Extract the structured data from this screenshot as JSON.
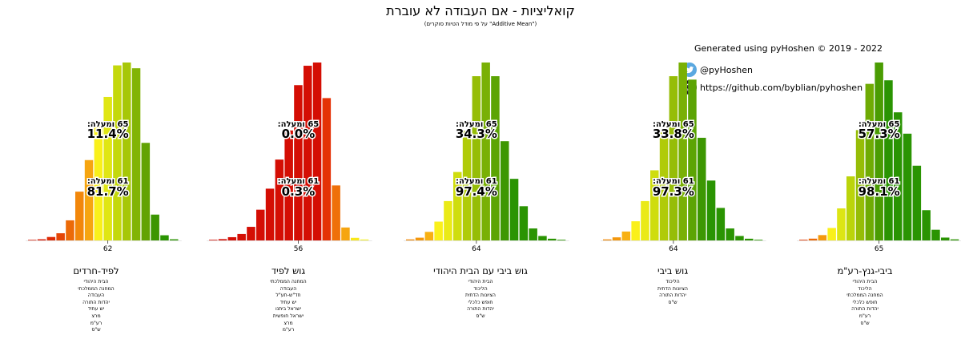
{
  "title": "קואליציות - אם העבודה לא עוברת",
  "subtitle": "(על פי מודל הטיות סוקרים \"Additive Mean\")",
  "credits": {
    "generated": "Generated using pyHoshen © 2019 - 2022",
    "twitter": "@pyHoshen",
    "github": "https://github.com/byblian/pyhoshen",
    "twitter_icon": "twitter-bird-icon",
    "github_icon": "github-octocat-icon"
  },
  "label_65": "65 ומעלה:",
  "label_61": "61 ומעלה:",
  "chart_data": [
    {
      "type": "bar",
      "name": "לפיד-חרדים",
      "tick_label": "62",
      "tick_value": 62,
      "pct_65": "11.4%",
      "pct_61": "81.7%",
      "parties": [
        "הבית היהודי",
        "המחנה הממלכתי",
        "העבודה",
        "יהדות התורה",
        "יש עתיד",
        "מרצ",
        "רע\"מ",
        "ש\"ס"
      ],
      "x": [
        54,
        55,
        56,
        57,
        58,
        59,
        60,
        61,
        62,
        63,
        64,
        65,
        66,
        67,
        68,
        69
      ],
      "values": [
        0.2,
        0.4,
        1.2,
        2.5,
        7,
        17,
        28,
        40,
        50,
        61,
        62,
        60,
        34,
        9,
        1.8,
        0.4
      ],
      "colors": [
        "#d81a05",
        "#d81a05",
        "#dd2a05",
        "#e54606",
        "#ec6a08",
        "#f2870b",
        "#f6a510",
        "#f9f01b",
        "#e0e614",
        "#c4d80c",
        "#a7c708",
        "#82b405",
        "#62a303",
        "#3c9602",
        "#2a9402",
        "#2a9402"
      ]
    },
    {
      "type": "bar",
      "name": "גוש לפיד",
      "tick_label": "56",
      "tick_value": 56,
      "pct_65": "0.0%",
      "pct_61": "0.3%",
      "parties": [
        "המחנה הממלכתי",
        "העבודה",
        "חד\"ש-תע\"ל",
        "יש עתיד",
        "ישראל ביתנו",
        "ישראל חופשית",
        "מרצ",
        "רע\"מ"
      ],
      "x": [
        47,
        48,
        49,
        50,
        51,
        52,
        53,
        54,
        55,
        56,
        57,
        58,
        59,
        60,
        61,
        62,
        63
      ],
      "values": [
        0.2,
        0.4,
        1,
        2,
        4.2,
        9.5,
        16,
        25,
        34,
        48,
        54,
        55,
        44,
        17,
        4,
        0.8,
        0.3
      ],
      "colors": [
        "#d40e04",
        "#d40e04",
        "#d40e04",
        "#d40e04",
        "#d40e04",
        "#d40e04",
        "#d40e04",
        "#d40e04",
        "#d40e04",
        "#d40e04",
        "#d40e04",
        "#d40e04",
        "#e43206",
        "#ef700a",
        "#f6a510",
        "#f9e81a",
        "#f3f13a"
      ]
    },
    {
      "type": "bar",
      "name": "גוש ביבי עם הבית היהודי",
      "tick_label": "64",
      "tick_value": 64,
      "pct_65": "34.3%",
      "pct_61": "97.4%",
      "parties": [
        "הבית היהודי",
        "הליכוד",
        "הציונות הדתית",
        "חופש כלכלי",
        "יהדות התורה",
        "ש\"ס"
      ],
      "x": [
        57,
        58,
        59,
        60,
        61,
        62,
        63,
        64,
        65,
        66,
        67,
        68,
        69,
        70,
        71,
        72,
        73
      ],
      "values": [
        0.3,
        0.8,
        2.5,
        5.5,
        11.5,
        20,
        32,
        48,
        52,
        48,
        29,
        18,
        10,
        3.5,
        1.3,
        0.5,
        0.2
      ],
      "colors": [
        "#f08a0b",
        "#f3970c",
        "#f8b011",
        "#faf01b",
        "#eaea17",
        "#cfdd0e",
        "#b0cb09",
        "#96bd07",
        "#79b005",
        "#5ca404",
        "#3d9702",
        "#2a9402",
        "#2a9402",
        "#2a9402",
        "#2a9402",
        "#2a9402",
        "#2a9402"
      ]
    },
    {
      "type": "bar",
      "name": "גוש ביבי",
      "tick_label": "64",
      "tick_value": 64,
      "pct_65": "33.8%",
      "pct_61": "97.3%",
      "parties": [
        "הליכוד",
        "הציונות הדתית",
        "יהדות התורה",
        "ש\"ס"
      ],
      "x": [
        57,
        58,
        59,
        60,
        61,
        62,
        63,
        64,
        65,
        66,
        67,
        68,
        69,
        70,
        71,
        72,
        73
      ],
      "values": [
        0.3,
        0.9,
        2.6,
        5.6,
        11.5,
        20.5,
        32,
        48,
        52,
        47,
        30,
        17.5,
        9.5,
        3.5,
        1.3,
        0.5,
        0.2
      ],
      "colors": [
        "#f08a0b",
        "#f3970c",
        "#f8b011",
        "#faf01b",
        "#eaea17",
        "#cfdd0e",
        "#b0cb09",
        "#96bd07",
        "#79b005",
        "#5ca404",
        "#3d9702",
        "#2a9402",
        "#2a9402",
        "#2a9402",
        "#2a9402",
        "#2a9402",
        "#2a9402"
      ]
    },
    {
      "type": "bar",
      "name": "ביבי-גנץ-רע\"מ",
      "tick_label": "65",
      "tick_value": 65,
      "pct_65": "57.3%",
      "pct_61": "98.1%",
      "parties": [
        "הבית היהודי",
        "הליכוד",
        "המחנה הממלכתי",
        "חופש כלכלי",
        "יהדות התורה",
        "רע\"מ",
        "ש\"ס"
      ],
      "x": [
        57,
        58,
        59,
        60,
        61,
        62,
        63,
        64,
        65,
        66,
        67,
        68,
        69,
        70,
        71,
        72,
        73
      ],
      "values": [
        0.2,
        0.5,
        1.5,
        3.5,
        9,
        18,
        31,
        44,
        50,
        45,
        36,
        30,
        21,
        8.5,
        3,
        0.8,
        0.3
      ],
      "colors": [
        "#e03a06",
        "#ec6a08",
        "#f4990d",
        "#faf01b",
        "#dde514",
        "#bbd40b",
        "#96bd07",
        "#6fab04",
        "#4a9c03",
        "#2a9402",
        "#2a9402",
        "#2a9402",
        "#2a9402",
        "#2a9402",
        "#2a9402",
        "#2a9402",
        "#2a9402"
      ]
    }
  ]
}
